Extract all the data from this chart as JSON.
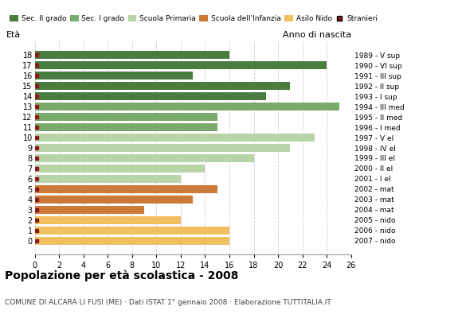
{
  "ages": [
    18,
    17,
    16,
    15,
    14,
    13,
    12,
    11,
    10,
    9,
    8,
    7,
    6,
    5,
    4,
    3,
    2,
    1,
    0
  ],
  "years": [
    "1989 - V sup",
    "1990 - VI sup",
    "1991 - III sup",
    "1992 - II sup",
    "1993 - I sup",
    "1994 - III med",
    "1995 - II med",
    "1996 - I med",
    "1997 - V el",
    "1998 - IV el",
    "1999 - III el",
    "2000 - II el",
    "2001 - I el",
    "2002 - mat",
    "2003 - mat",
    "2004 - mat",
    "2005 - nido",
    "2006 - nido",
    "2007 - nido"
  ],
  "values": [
    16,
    24,
    13,
    21,
    19,
    25,
    15,
    15,
    23,
    21,
    18,
    14,
    12,
    15,
    13,
    9,
    12,
    16,
    16
  ],
  "colors": [
    "#4a7c3f",
    "#4a7c3f",
    "#4a7c3f",
    "#4a7c3f",
    "#4a7c3f",
    "#7aaa6b",
    "#7aaa6b",
    "#7aaa6b",
    "#b8d4a8",
    "#b8d4a8",
    "#b8d4a8",
    "#b8d4a8",
    "#b8d4a8",
    "#cc7a3a",
    "#cc7a3a",
    "#cc7a3a",
    "#f0c060",
    "#f0c060",
    "#f0c060"
  ],
  "stranieri_color": "#8b1a1a",
  "legend_labels": [
    "Sec. II grado",
    "Sec. I grado",
    "Scuola Primaria",
    "Scuola dell'Infanzia",
    "Asilo Nido",
    "Stranieri"
  ],
  "legend_colors": [
    "#4a7c3f",
    "#7aaa6b",
    "#b8d4a8",
    "#cc7a3a",
    "#f0c060",
    "#8b1a1a"
  ],
  "title": "Popolazione per età scolastica - 2008",
  "subtitle": "COMUNE DI ALCARA LI FUSI (ME) · Dati ISTAT 1° gennaio 2008 · Elaborazione TUTTITALIA.IT",
  "xlabel_eta": "Età",
  "xlabel_anno": "Anno di nascita",
  "xlim": [
    0,
    26
  ],
  "xticks": [
    0,
    2,
    4,
    6,
    8,
    10,
    12,
    14,
    16,
    18,
    20,
    22,
    24,
    26
  ],
  "bg_color": "#ffffff",
  "grid_color": "#cccccc",
  "bar_height": 0.78
}
